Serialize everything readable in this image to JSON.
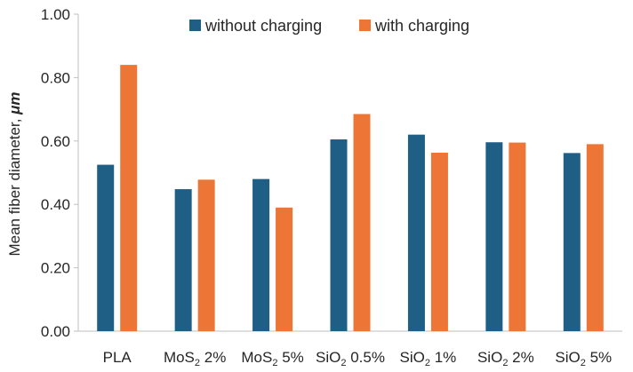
{
  "chart_data": {
    "type": "bar",
    "title": "",
    "xlabel": "",
    "ylabel": "Mean fiber diameter, ",
    "ylabel_unit": "μm",
    "ylim": [
      0,
      1.0
    ],
    "yticks": [
      "0.00",
      "0.20",
      "0.40",
      "0.60",
      "0.80",
      "1.00"
    ],
    "ytick_values": [
      0,
      0.2,
      0.4,
      0.6,
      0.8,
      1.0
    ],
    "grid": false,
    "legend_position": "top-center",
    "categories": [
      {
        "base": "PLA",
        "sub": "",
        "rest": ""
      },
      {
        "base": "MoS",
        "sub": "2",
        "rest": " 2%"
      },
      {
        "base": "MoS",
        "sub": "2",
        "rest": " 5%"
      },
      {
        "base": "SiO",
        "sub": "2",
        "rest": " 0.5%"
      },
      {
        "base": "SiO",
        "sub": "2",
        "rest": " 1%"
      },
      {
        "base": "SiO",
        "sub": "2",
        "rest": " 2%"
      },
      {
        "base": "SiO",
        "sub": "2",
        "rest": " 5%"
      }
    ],
    "series": [
      {
        "name": "without charging",
        "color": "#1f5f86",
        "values": [
          0.525,
          0.448,
          0.48,
          0.605,
          0.62,
          0.596,
          0.562
        ]
      },
      {
        "name": "with charging",
        "color": "#ed7535",
        "values": [
          0.84,
          0.478,
          0.39,
          0.685,
          0.563,
          0.595,
          0.59
        ]
      }
    ]
  }
}
